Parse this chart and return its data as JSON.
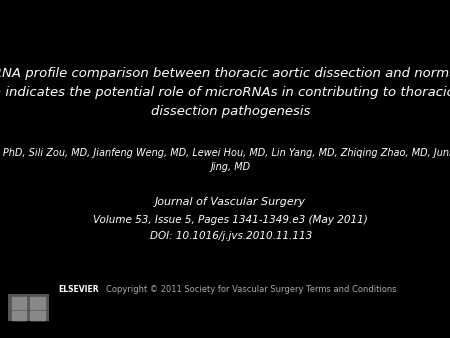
{
  "background_color": "#000000",
  "text_color": "#ffffff",
  "title_line1": "A microRNA profile comparison between thoracic aortic dissection and normal thoracic",
  "title_line2": "aorta indicates the potential role of microRNAs in contributing to thoracic aortic",
  "title_line3": "dissection pathogenesis",
  "authors": "Mingfang Liao, MD, PhD, Sili Zou, MD, Jianfeng Weng, MD, Lewei Hou, MD, Lin Yang, MD, Zhiqing Zhao, MD, Junmin Bao, MD, Zaiping\nJing, MD",
  "journal": "Journal of Vascular Surgery",
  "volume_info": "Volume 53, Issue 5, Pages 1341-1349.e3 (May 2011)",
  "doi": "DOI: 10.1016/j.jvs.2010.11.113",
  "copyright": "Copyright © 2011 Society for Vascular Surgery Terms and Conditions",
  "elsevier_label": "ELSEVIER",
  "title_fontsize": 9.5,
  "authors_fontsize": 7.0,
  "journal_fontsize": 8.0,
  "info_fontsize": 7.5,
  "copyright_fontsize": 6.0
}
